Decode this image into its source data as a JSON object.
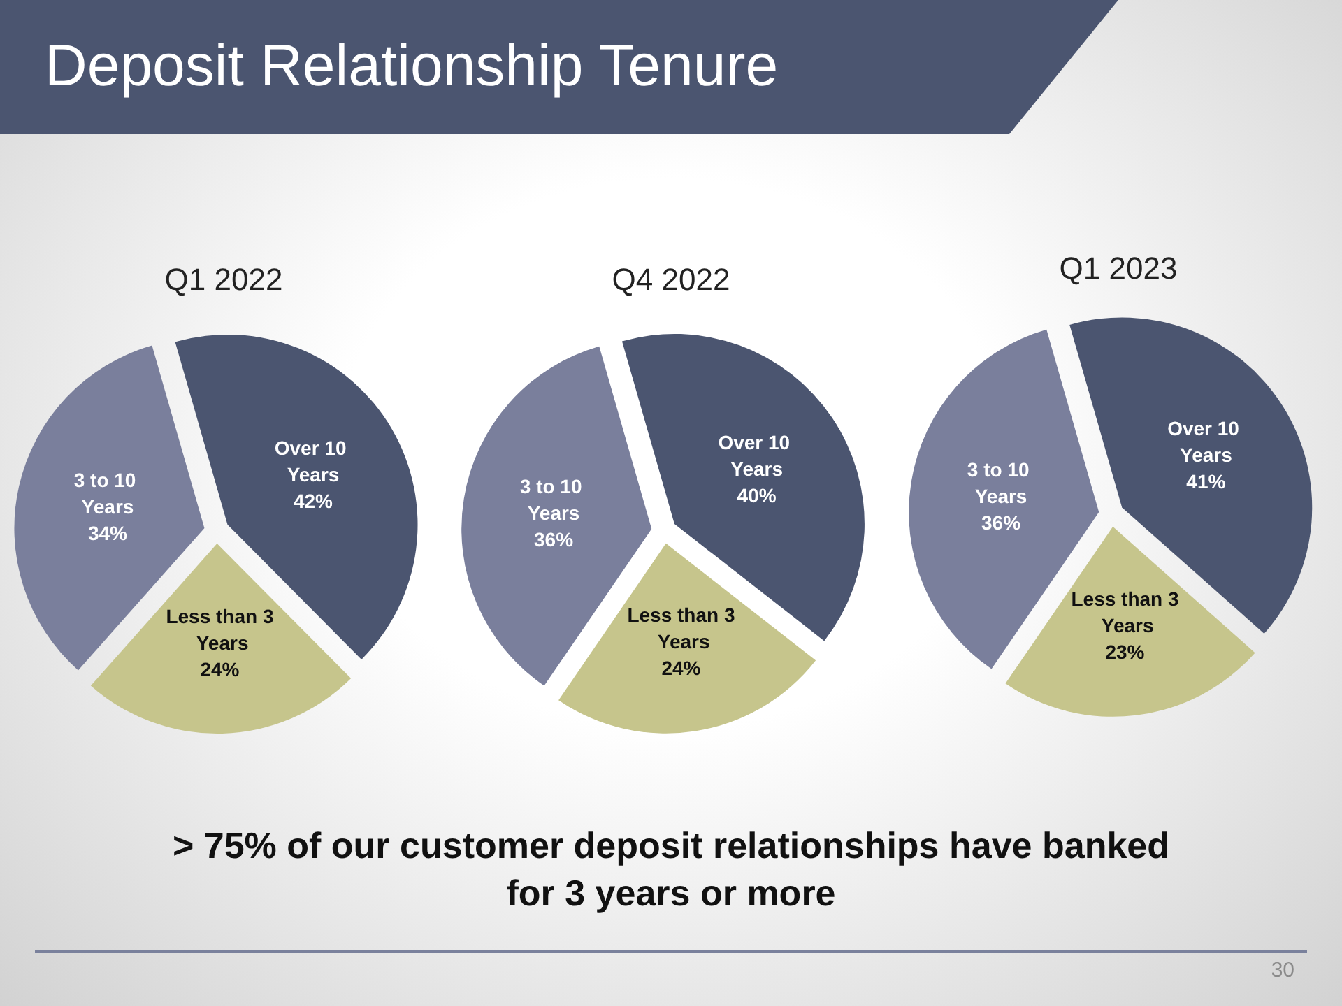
{
  "chart_data": [
    {
      "type": "other",
      "title": "Deposit Relationship Tenure"
    },
    {
      "type": "pie",
      "title": "Q1 2022",
      "categories": [
        "Over 10 Years",
        "Less than 3 Years",
        "3 to 10 Years"
      ],
      "values": [
        42,
        24,
        34
      ],
      "colors": [
        "#4b5570",
        "#c6c58c",
        "#7a7f9c"
      ],
      "value_labels": [
        "42%",
        "24%",
        "34%"
      ]
    },
    {
      "type": "pie",
      "title": "Q4 2022",
      "categories": [
        "Over 10 Years",
        "Less than 3 Years",
        "3 to 10 Years"
      ],
      "values": [
        40,
        24,
        36
      ],
      "colors": [
        "#4b5570",
        "#c6c58c",
        "#7a7f9c"
      ],
      "value_labels": [
        "40%",
        "24%",
        "36%"
      ]
    },
    {
      "type": "pie",
      "title": "Q1 2023",
      "categories": [
        "Over 10 Years",
        "Less than 3 Years",
        "3 to 10 Years"
      ],
      "values": [
        41,
        23,
        36
      ],
      "colors": [
        "#4b5570",
        "#c6c58c",
        "#7a7f9c"
      ],
      "value_labels": [
        "41%",
        "23%",
        "36%"
      ]
    },
    {
      "type": "other",
      "annotations": [
        "> 75% of our customer deposit relationships have banked for 3 years or more",
        "30"
      ]
    }
  ]
}
